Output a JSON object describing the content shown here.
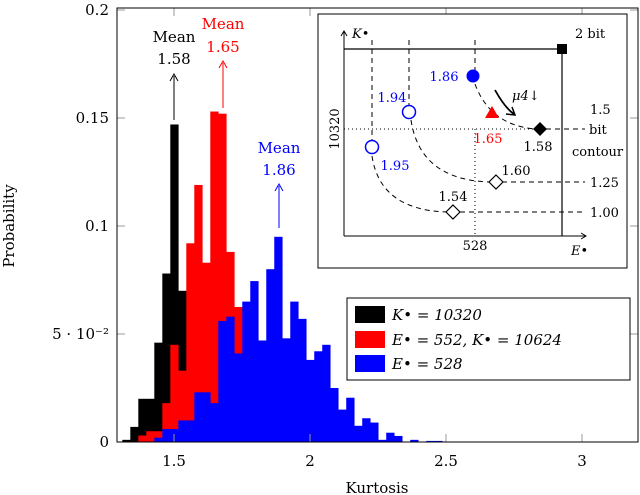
{
  "chart_data": {
    "type": "bar",
    "subtype": "overlapping-histogram",
    "xlabel": "Kurtosis",
    "ylabel": "Probability",
    "xlim": [
      1.31,
      3.2
    ],
    "ylim": [
      0,
      0.2
    ],
    "xticks": [
      {
        "v": 1.5,
        "label": "1.5"
      },
      {
        "v": 2,
        "label": "2"
      },
      {
        "v": 2.5,
        "label": "2.5"
      },
      {
        "v": 3,
        "label": "3"
      }
    ],
    "yticks": [
      {
        "v": 0,
        "label": "0"
      },
      {
        "v": 0.05,
        "label": "5 · 10⁻²"
      },
      {
        "v": 0.1,
        "label": "0.1"
      },
      {
        "v": 0.15,
        "label": "0.15"
      },
      {
        "v": 0.2,
        "label": "0.2"
      }
    ],
    "bin_start": 1.31,
    "bin_width": 0.0294,
    "series": [
      {
        "name": "K• = 10320",
        "color": "#000000",
        "values": [
          0.001,
          0.007,
          0.02,
          0.02,
          0.046,
          0.078,
          0.147,
          0.07,
          0.03,
          0.01
        ]
      },
      {
        "name": "E• = 552, K• = 10624",
        "color": "#ff0000",
        "values": [
          0,
          0,
          0.003,
          0.005,
          0.005,
          0.018,
          0.045,
          0.033,
          0.092,
          0.119,
          0.083,
          0.153,
          0.152,
          0.088,
          0.0625,
          0.03,
          0.01,
          0.005
        ]
      },
      {
        "name": "E• = 528",
        "color": "#0000ff",
        "values": [
          0,
          0,
          0,
          0,
          0.002,
          0.006,
          0.006,
          0.01,
          0.01,
          0.023,
          0.023,
          0.018,
          0.056,
          0.058,
          0.041,
          0.065,
          0.0745,
          0.047,
          0.08,
          0.095,
          0.048,
          0.065,
          0.057,
          0.038,
          0.042,
          0.045,
          0.025,
          0.015,
          0.0205,
          0.0075,
          0.011,
          0.009,
          0.001,
          0.0043,
          0.0028,
          0,
          0.001,
          0,
          0.0005,
          0.0005
        ]
      }
    ],
    "annotations": [
      {
        "label": "Mean",
        "value": "1.58",
        "color": "#000000"
      },
      {
        "label": "Mean",
        "value": "1.65",
        "color": "#ff0000"
      },
      {
        "label": "Mean",
        "value": "1.86",
        "color": "#0000ff"
      }
    ],
    "legend": {
      "position": "bottom-right",
      "entries": [
        "K• = 10320",
        "E• = 552, K• = 10624",
        "E• = 528"
      ]
    },
    "inset": {
      "x_axis_label": "E•",
      "y_axis_label": "K•",
      "x_ref": "528",
      "y_ref": "10320",
      "corner_label": "2 bit",
      "arrow_label": "μ4↓",
      "contours": [
        "1.5",
        "bit",
        "contour",
        "1.25",
        "1.00"
      ],
      "points": [
        {
          "label": "1.86",
          "color": "#0000ff",
          "marker": "filled-circle"
        },
        {
          "label": "1.94",
          "color": "#0000ff",
          "marker": "open-circle"
        },
        {
          "label": "1.95",
          "color": "#0000ff",
          "marker": "open-circle"
        },
        {
          "label": "1.65",
          "color": "#ff0000",
          "marker": "filled-triangle"
        },
        {
          "label": "1.58",
          "color": "#000000",
          "marker": "filled-diamond"
        },
        {
          "label": "1.60",
          "color": "#000000",
          "marker": "open-diamond"
        },
        {
          "label": "1.54",
          "color": "#000000",
          "marker": "open-diamond"
        }
      ]
    }
  }
}
